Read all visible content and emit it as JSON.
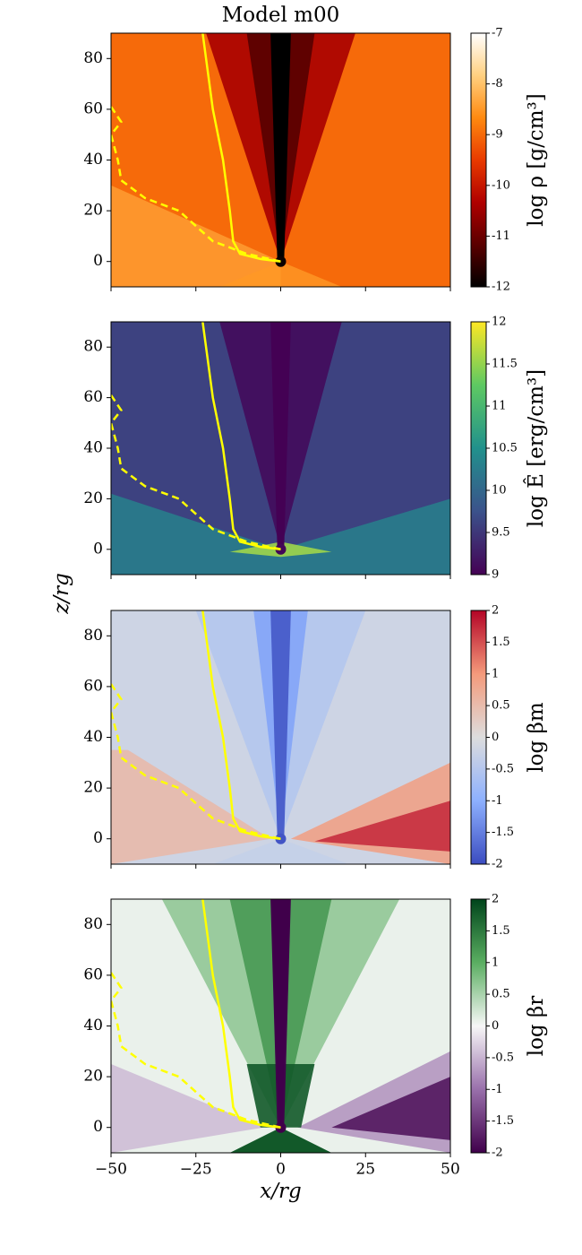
{
  "chart_data": [
    {
      "type": "heatmap",
      "title": "Model m00",
      "ylabel": "z/rg",
      "colorbar_label": "log ρ [g/cm³]",
      "xlim": [
        -50,
        50
      ],
      "ylim": [
        -10,
        90
      ],
      "xticks": [
        -50,
        -25,
        0,
        25,
        50
      ],
      "yticks": [
        0,
        20,
        40,
        60,
        80
      ],
      "clim": [
        -12,
        -7
      ],
      "cticks": [
        -12,
        -11,
        -10,
        -9,
        -8,
        -7
      ],
      "colormap": [
        "#000000",
        "#5a0000",
        "#b00000",
        "#e83a00",
        "#ff8a10",
        "#ffd080",
        "#ffffff"
      ],
      "series": [
        {
          "color": "#ffff00",
          "style": "solid",
          "x": [
            -23,
            -20,
            -17,
            -15,
            -14,
            -12,
            -6,
            0
          ],
          "values": [
            90,
            60,
            40,
            20,
            8,
            3,
            1,
            0
          ]
        },
        {
          "color": "#ffff00",
          "style": "dashed",
          "x": [
            -50,
            -47,
            -50,
            -48,
            -47,
            -40,
            -30,
            -20,
            -10,
            0
          ],
          "values": [
            61,
            55,
            50,
            40,
            32,
            25,
            20,
            8,
            3,
            0
          ]
        }
      ]
    },
    {
      "type": "heatmap",
      "colorbar_label": "log Ê [erg/cm³]",
      "xlim": [
        -50,
        50
      ],
      "ylim": [
        -10,
        90
      ],
      "xticks": [
        -50,
        -25,
        0,
        25,
        50
      ],
      "yticks": [
        0,
        20,
        40,
        60,
        80
      ],
      "clim": [
        9,
        12
      ],
      "cticks": [
        9,
        9.5,
        10,
        10.5,
        11,
        11.5,
        12
      ],
      "colormap": [
        "#440154",
        "#3b528b",
        "#21918c",
        "#5ec962",
        "#fde725"
      ],
      "series": [
        {
          "color": "#ffff00",
          "style": "solid",
          "x": [
            -23,
            -20,
            -17,
            -15,
            -14,
            -12,
            -6,
            0
          ],
          "values": [
            90,
            60,
            40,
            20,
            8,
            3,
            1,
            0
          ]
        },
        {
          "color": "#ffff00",
          "style": "dashed",
          "x": [
            -50,
            -47,
            -50,
            -48,
            -47,
            -40,
            -30,
            -20,
            -10,
            0
          ],
          "values": [
            61,
            55,
            50,
            40,
            32,
            25,
            20,
            8,
            3,
            0
          ]
        }
      ]
    },
    {
      "type": "heatmap",
      "colorbar_label": "log βm",
      "xlim": [
        -50,
        50
      ],
      "ylim": [
        -10,
        90
      ],
      "xticks": [
        -50,
        -25,
        0,
        25,
        50
      ],
      "yticks": [
        0,
        20,
        40,
        60,
        80
      ],
      "clim": [
        -2,
        2
      ],
      "cticks": [
        -2,
        -1.5,
        -1,
        -0.5,
        0,
        0.5,
        1,
        1.5,
        2
      ],
      "colormap": [
        "#3b4cc0",
        "#8db0fe",
        "#dddddd",
        "#f49a7b",
        "#b40426"
      ],
      "series": [
        {
          "color": "#ffff00",
          "style": "solid",
          "x": [
            -23,
            -20,
            -17,
            -15,
            -14,
            -12,
            -6,
            0
          ],
          "values": [
            90,
            60,
            40,
            20,
            8,
            3,
            1,
            0
          ]
        },
        {
          "color": "#ffff00",
          "style": "dashed",
          "x": [
            -50,
            -47,
            -50,
            -48,
            -47,
            -40,
            -30,
            -20,
            -10,
            0
          ],
          "values": [
            61,
            55,
            50,
            40,
            32,
            25,
            20,
            8,
            3,
            0
          ]
        }
      ]
    },
    {
      "type": "heatmap",
      "xlabel": "x/rg",
      "colorbar_label": "log βr",
      "xlim": [
        -50,
        50
      ],
      "ylim": [
        -10,
        90
      ],
      "xticks": [
        {
          "value": -50,
          "label": "−50"
        },
        {
          "value": -25,
          "label": "−25"
        },
        0,
        25,
        50
      ],
      "yticks": [
        0,
        20,
        40,
        60,
        80
      ],
      "clim": [
        -2,
        2
      ],
      "cticks": [
        -2,
        -1.5,
        -1,
        -0.5,
        0,
        0.5,
        1,
        1.5,
        2
      ],
      "colormap": [
        "#40004b",
        "#9970ab",
        "#f7f7f7",
        "#5aae61",
        "#00441b"
      ],
      "series": [
        {
          "color": "#ffff00",
          "style": "solid",
          "x": [
            -23,
            -20,
            -17,
            -15,
            -14,
            -12,
            -6,
            0
          ],
          "values": [
            90,
            60,
            40,
            20,
            8,
            3,
            1,
            0
          ]
        },
        {
          "color": "#ffff00",
          "style": "dashed",
          "x": [
            -50,
            -47,
            -50,
            -48,
            -47,
            -40,
            -30,
            -20,
            -10,
            0
          ],
          "values": [
            61,
            55,
            50,
            40,
            32,
            25,
            20,
            8,
            3,
            0
          ]
        }
      ]
    }
  ]
}
